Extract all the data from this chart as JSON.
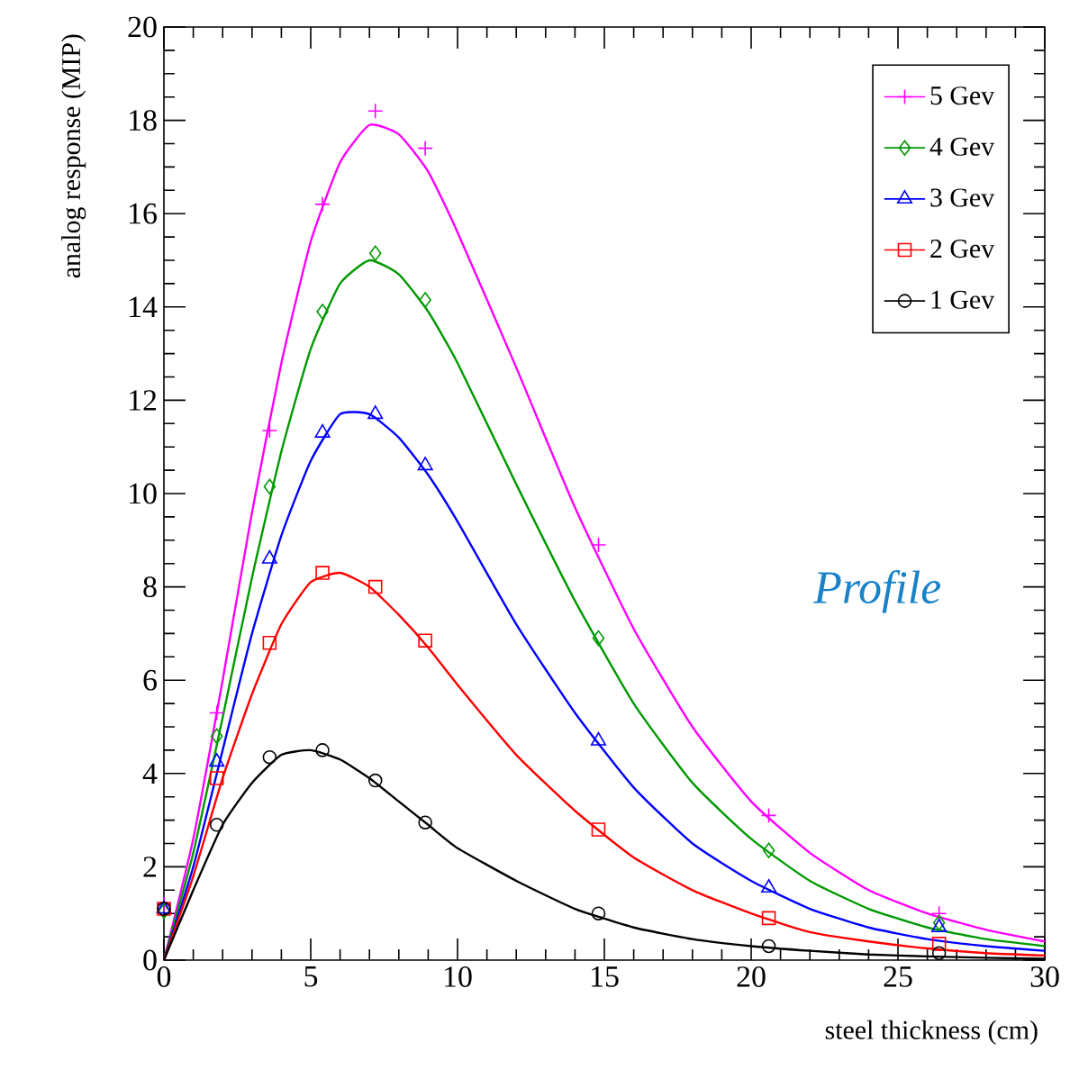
{
  "chart_data": {
    "type": "scatter",
    "xlabel": "steel thickness (cm)",
    "ylabel": "analog response (MIP)",
    "x": [
      0,
      1.8,
      3.6,
      5.4,
      7.2,
      8.9,
      14.8,
      20.6,
      26.4
    ],
    "xlim": [
      0,
      30
    ],
    "xticks": [
      0,
      5,
      10,
      15,
      20,
      25,
      30
    ],
    "ylim": [
      0,
      20
    ],
    "yticks": [
      0,
      2,
      4,
      6,
      8,
      10,
      12,
      14,
      16,
      18,
      20
    ],
    "legend": "top right",
    "annotations": [
      "Profile"
    ],
    "series": [
      {
        "name": "5 Gev",
        "marker": "cross",
        "color": "#ff00ff",
        "values": [
          1.2,
          5.3,
          11.35,
          16.2,
          18.2,
          17.4,
          8.9,
          3.1,
          1.0
        ]
      },
      {
        "name": "4 Gev",
        "marker": "diamond",
        "color": "#009900",
        "values": [
          1.05,
          4.8,
          10.15,
          13.9,
          15.15,
          14.15,
          6.9,
          2.35,
          0.8
        ]
      },
      {
        "name": "3 Gev",
        "marker": "triangle",
        "color": "#0000ff",
        "values": [
          1.1,
          4.25,
          8.6,
          11.3,
          11.7,
          10.6,
          4.7,
          1.55,
          0.7
        ]
      },
      {
        "name": "2 Gev",
        "marker": "square",
        "color": "#ff0000",
        "values": [
          1.1,
          3.9,
          6.8,
          8.3,
          8.0,
          6.85,
          2.8,
          0.9,
          0.35
        ]
      },
      {
        "name": "1 Gev",
        "marker": "circle",
        "color": "#000000",
        "values": [
          1.1,
          2.9,
          4.35,
          4.5,
          3.85,
          2.95,
          1.0,
          0.3,
          0.15
        ]
      },
      {
        "type": "line",
        "marker": "none",
        "color": "#ff00ff",
        "x": [
          0,
          1,
          2,
          3,
          4,
          5,
          6,
          7,
          8,
          9,
          10,
          12,
          14,
          16,
          18,
          20,
          22,
          24,
          26,
          28,
          30
        ],
        "values": [
          0,
          2.6,
          6.0,
          9.6,
          12.8,
          15.4,
          17.1,
          17.9,
          17.7,
          16.9,
          15.6,
          12.7,
          9.7,
          7.1,
          5.0,
          3.4,
          2.3,
          1.5,
          1.0,
          0.65,
          0.4
        ]
      },
      {
        "type": "line",
        "marker": "none",
        "color": "#009900",
        "x": [
          0,
          1,
          2,
          3,
          4,
          5,
          6,
          7,
          8,
          9,
          10,
          12,
          14,
          16,
          18,
          20,
          22,
          24,
          26,
          28,
          30
        ],
        "values": [
          0,
          2.3,
          5.2,
          8.2,
          10.9,
          13.1,
          14.5,
          15.0,
          14.7,
          13.9,
          12.8,
          10.2,
          7.7,
          5.5,
          3.8,
          2.6,
          1.7,
          1.1,
          0.7,
          0.45,
          0.3
        ]
      },
      {
        "type": "line",
        "marker": "none",
        "color": "#0000ff",
        "x": [
          0,
          1,
          2,
          3,
          4,
          5,
          6,
          7,
          8,
          9,
          10,
          12,
          14,
          16,
          18,
          20,
          22,
          24,
          26,
          28,
          30
        ],
        "values": [
          0,
          2.0,
          4.5,
          7.0,
          9.1,
          10.7,
          11.7,
          11.7,
          11.2,
          10.4,
          9.4,
          7.2,
          5.3,
          3.7,
          2.5,
          1.7,
          1.1,
          0.7,
          0.45,
          0.3,
          0.2
        ]
      },
      {
        "type": "line",
        "marker": "none",
        "color": "#ff0000",
        "x": [
          0,
          1,
          2,
          3,
          4,
          5,
          6,
          7,
          8,
          9,
          10,
          12,
          14,
          16,
          18,
          20,
          22,
          24,
          26,
          28,
          30
        ],
        "values": [
          0,
          1.8,
          3.9,
          5.7,
          7.2,
          8.1,
          8.3,
          8.0,
          7.4,
          6.7,
          5.9,
          4.4,
          3.2,
          2.2,
          1.5,
          1.0,
          0.6,
          0.4,
          0.25,
          0.15,
          0.1
        ]
      },
      {
        "type": "line",
        "marker": "none",
        "color": "#000000",
        "x": [
          0,
          1,
          2,
          3,
          4,
          5,
          6,
          7,
          8,
          9,
          10,
          12,
          14,
          16,
          18,
          20,
          22,
          24,
          26,
          28,
          30
        ],
        "values": [
          0,
          1.5,
          2.9,
          3.8,
          4.4,
          4.5,
          4.3,
          3.9,
          3.4,
          2.9,
          2.4,
          1.7,
          1.1,
          0.7,
          0.45,
          0.3,
          0.2,
          0.12,
          0.08,
          0.05,
          0.03
        ]
      }
    ]
  }
}
